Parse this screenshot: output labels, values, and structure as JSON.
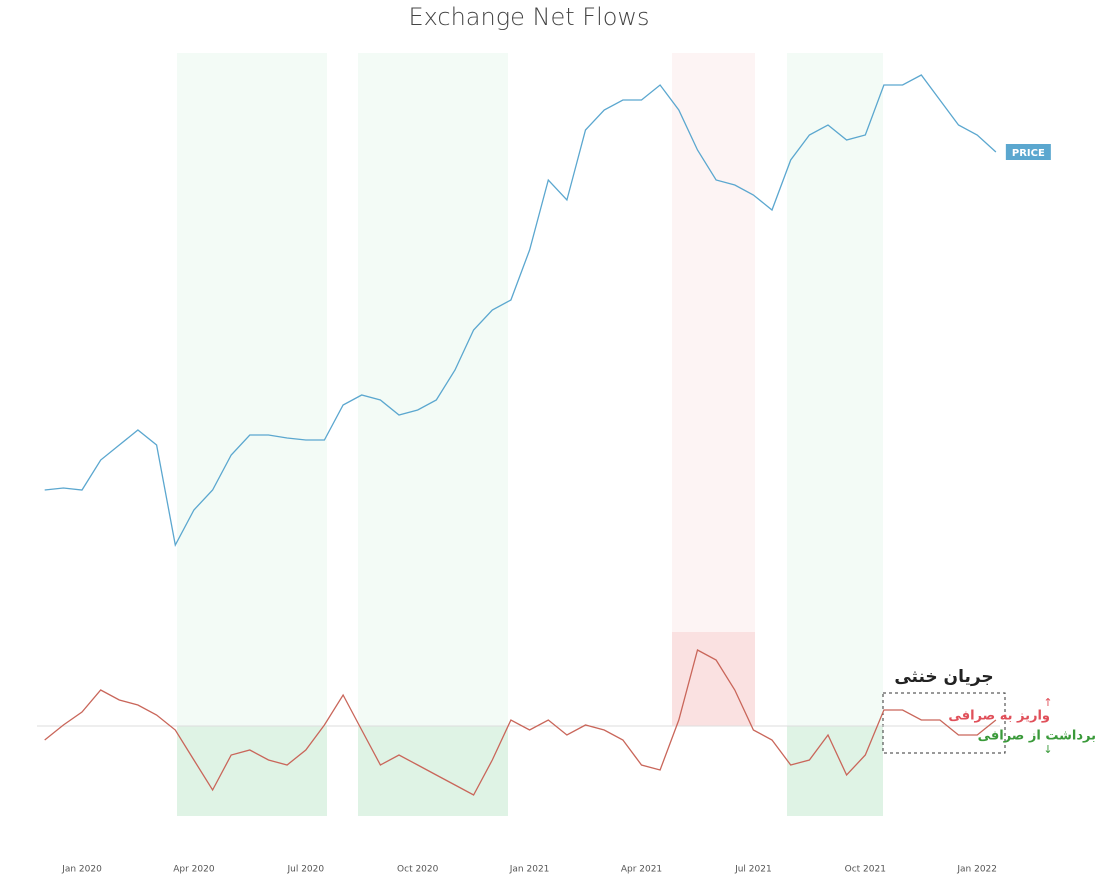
{
  "chart_data": {
    "type": "line",
    "title": "Exchange Net Flows",
    "categories": [
      null,
      null,
      "Jan 2020",
      null,
      null,
      null,
      null,
      null,
      "Apr 2020",
      null,
      null,
      null,
      null,
      null,
      "Jul 2020",
      null,
      null,
      null,
      null,
      null,
      "Oct 2020",
      null,
      null,
      null,
      null,
      null,
      "Jan 2021",
      null,
      null,
      null,
      null,
      null,
      "Apr 2021",
      null,
      null,
      null,
      null,
      null,
      "Jul 2021",
      null,
      null,
      null,
      null,
      null,
      "Oct 2021",
      null,
      null,
      null,
      null,
      null,
      "Jan 2022",
      null
    ],
    "ylim": [
      0,
      100
    ],
    "y2lim": [
      -12,
      12
    ],
    "series": [
      {
        "name": "PRICE",
        "color": "#5ba7cf",
        "axis": "y",
        "values": [
          16,
          16.4,
          16,
          22,
          25,
          28,
          25,
          5,
          12,
          16,
          23,
          27,
          27,
          26.4,
          26,
          26,
          33,
          35,
          34,
          31,
          32,
          34,
          40,
          48,
          52,
          54,
          64,
          78,
          74,
          88,
          92,
          94,
          94,
          97,
          92,
          84,
          78,
          77,
          75,
          72,
          82,
          87,
          89,
          86,
          87,
          97,
          97,
          99,
          94,
          89,
          87,
          83.6
        ]
      },
      {
        "color": "#c9665a",
        "axis": "y2",
        "values": [
          -1.4,
          0.1,
          1.4,
          3.6,
          2.6,
          2.1,
          1.1,
          -0.4,
          -3.4,
          -6.4,
          -2.9,
          -2.4,
          -3.4,
          -3.9,
          -2.4,
          0.1,
          3.1,
          -0.4,
          -3.9,
          -2.9,
          -3.9,
          -4.9,
          -5.9,
          -6.9,
          -3.4,
          0.6,
          -0.4,
          0.6,
          -0.9,
          0.1,
          -0.4,
          -1.4,
          -3.9,
          -4.4,
          0.6,
          7.6,
          6.6,
          3.6,
          -0.4,
          -1.4,
          -3.9,
          -3.4,
          -0.9,
          -4.9,
          -2.9,
          1.6,
          1.6,
          0.6,
          0.6,
          -0.9,
          -0.9,
          0.6
        ]
      }
    ],
    "annotations": {
      "neutral": "جریان خنثی",
      "deposit": "واریز به صرافی",
      "withdraw": "برداشت از صرافی",
      "up": "↑",
      "down": "↓"
    }
  }
}
